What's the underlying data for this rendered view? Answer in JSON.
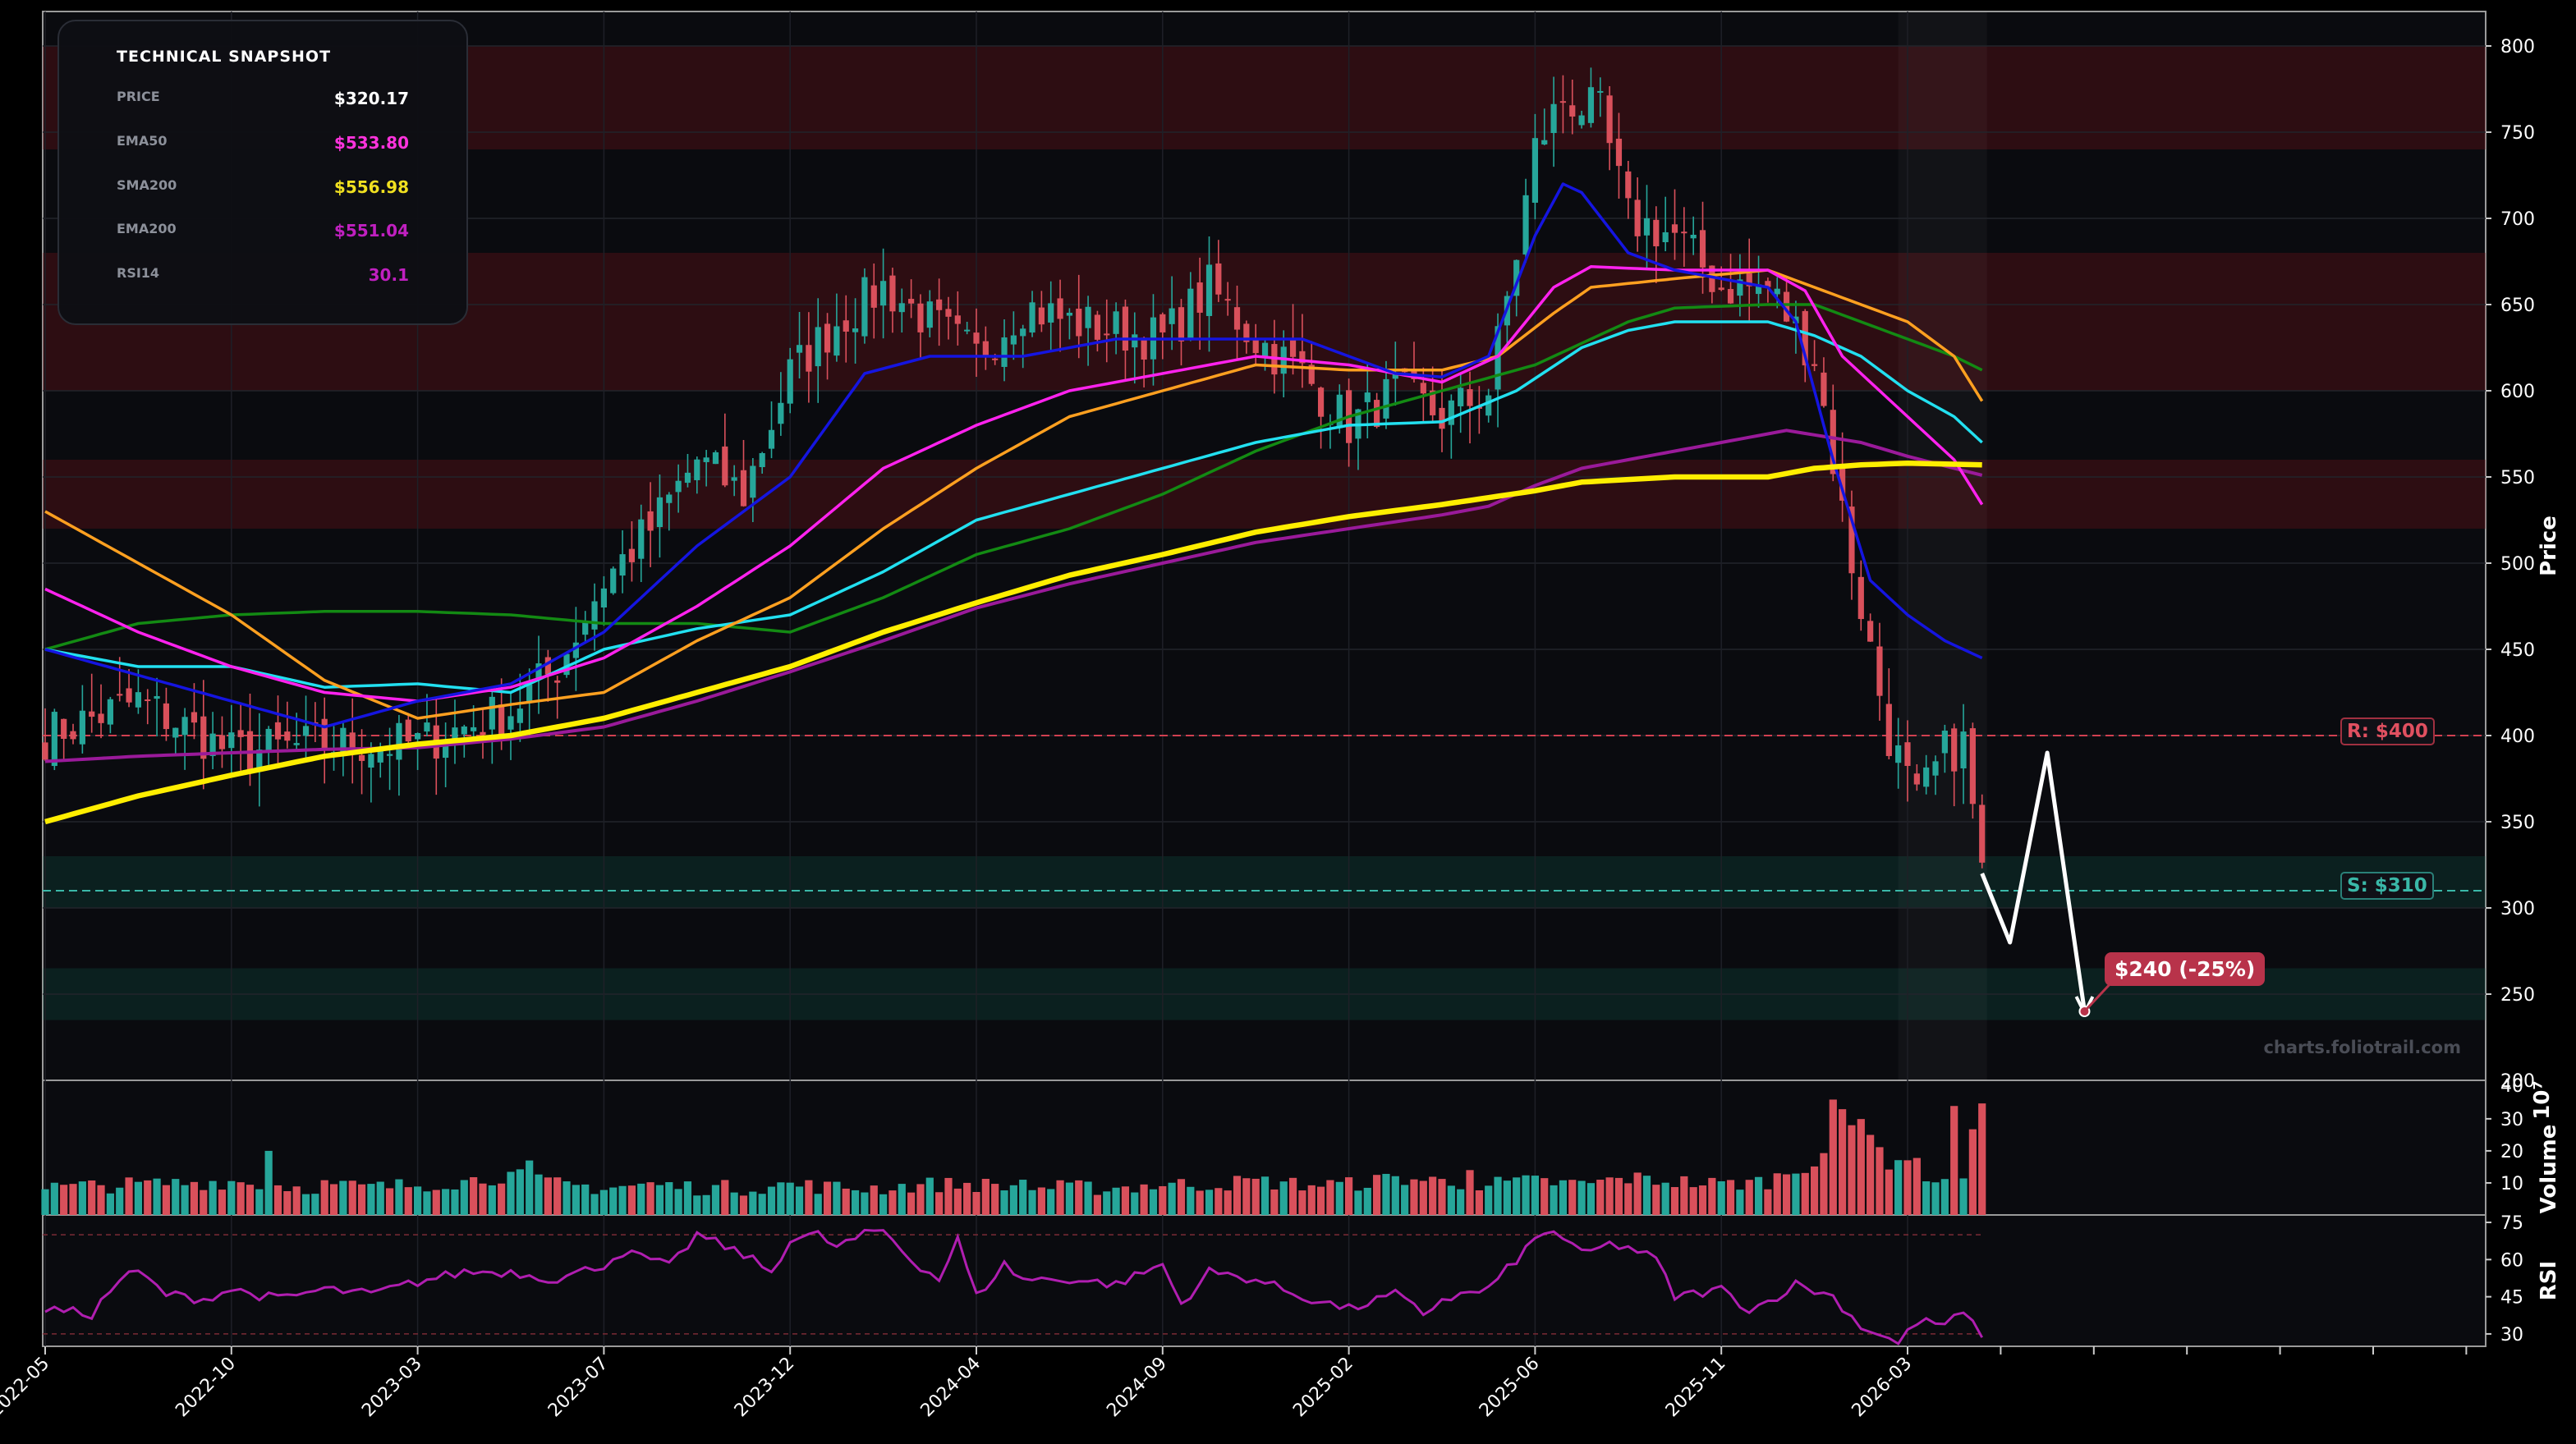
{
  "snapshot": {
    "title": "TECHNICAL SNAPSHOT",
    "rows": [
      {
        "label": "PRICE",
        "value": "$320.17",
        "color": "#ffffff"
      },
      {
        "label": "EMA50",
        "value": "$533.80",
        "color": "#ff33dd"
      },
      {
        "label": "SMA200",
        "value": "$556.98",
        "color": "#f0e020"
      },
      {
        "label": "EMA200",
        "value": "$551.04",
        "color": "#c020c0"
      },
      {
        "label": "RSI14",
        "value": "30.1",
        "color": "#c020c0"
      }
    ]
  },
  "watermark": "charts.foliotrail.com",
  "levels": {
    "resistance_label": "R: $400",
    "support_label": "S: $310",
    "target_label": "$240 (-25%)"
  },
  "chart_data": {
    "type": "candlestick",
    "price_axis": {
      "title": "Price",
      "ticks": [
        250,
        300,
        350,
        400,
        450,
        500,
        550,
        600,
        650,
        700,
        750,
        800
      ],
      "range": [
        200,
        820
      ],
      "extra_tick": "200"
    },
    "volume_axis": {
      "title": "Volume",
      "multiplier": "10⁷",
      "ticks": [
        10,
        20,
        30
      ],
      "top_label": "40"
    },
    "rsi_axis": {
      "title": "RSI",
      "ticks": [
        30,
        45,
        60,
        75
      ],
      "range": [
        25,
        78
      ]
    },
    "x_ticks": [
      "2022-05",
      "2022-10",
      "2023-03",
      "2023-07",
      "2023-12",
      "2024-04",
      "2024-09",
      "2025-02",
      "2025-06",
      "2025-11",
      "2026-03"
    ],
    "x_tick_index": [
      0,
      20,
      40,
      60,
      80,
      100,
      120,
      140,
      160,
      180,
      200
    ],
    "last_index": 208,
    "resistance": 400,
    "support": 310,
    "resistance_zones": [
      [
        740,
        800
      ],
      [
        600,
        680
      ],
      [
        520,
        560
      ]
    ],
    "support_zones": [
      [
        300,
        330
      ],
      [
        235,
        265
      ]
    ],
    "projection": [
      [
        208,
        320
      ],
      [
        211,
        280
      ],
      [
        215,
        390
      ],
      [
        219,
        240
      ]
    ],
    "target": 240,
    "anchors": {
      "close": [
        [
          0,
          400
        ],
        [
          10,
          420
        ],
        [
          20,
          390
        ],
        [
          30,
          395
        ],
        [
          40,
          395
        ],
        [
          50,
          415
        ],
        [
          55,
          440
        ],
        [
          60,
          490
        ],
        [
          65,
          520
        ],
        [
          70,
          560
        ],
        [
          75,
          540
        ],
        [
          80,
          610
        ],
        [
          85,
          640
        ],
        [
          90,
          660
        ],
        [
          95,
          640
        ],
        [
          100,
          620
        ],
        [
          105,
          650
        ],
        [
          110,
          640
        ],
        [
          120,
          630
        ],
        [
          125,
          660
        ],
        [
          130,
          630
        ],
        [
          135,
          610
        ],
        [
          140,
          580
        ],
        [
          145,
          600
        ],
        [
          150,
          585
        ],
        [
          155,
          600
        ],
        [
          158,
          680
        ],
        [
          160,
          740
        ],
        [
          163,
          770
        ],
        [
          167,
          760
        ],
        [
          170,
          700
        ],
        [
          175,
          690
        ],
        [
          180,
          660
        ],
        [
          185,
          660
        ],
        [
          190,
          620
        ],
        [
          194,
          500
        ],
        [
          198,
          400
        ],
        [
          201,
          360
        ],
        [
          204,
          390
        ],
        [
          206,
          395
        ],
        [
          208,
          320
        ]
      ],
      "ema20": [
        [
          0,
          450
        ],
        [
          10,
          435
        ],
        [
          20,
          420
        ],
        [
          30,
          405
        ],
        [
          40,
          420
        ],
        [
          50,
          430
        ],
        [
          60,
          460
        ],
        [
          70,
          510
        ],
        [
          80,
          550
        ],
        [
          88,
          610
        ],
        [
          95,
          620
        ],
        [
          105,
          620
        ],
        [
          115,
          630
        ],
        [
          125,
          630
        ],
        [
          135,
          630
        ],
        [
          145,
          610
        ],
        [
          150,
          608
        ],
        [
          155,
          620
        ],
        [
          160,
          690
        ],
        [
          163,
          720
        ],
        [
          165,
          715
        ],
        [
          170,
          680
        ],
        [
          175,
          670
        ],
        [
          180,
          665
        ],
        [
          185,
          660
        ],
        [
          188,
          640
        ],
        [
          192,
          560
        ],
        [
          196,
          490
        ],
        [
          200,
          470
        ],
        [
          204,
          455
        ],
        [
          208,
          445
        ]
      ],
      "ema50": [
        [
          0,
          485
        ],
        [
          10,
          460
        ],
        [
          20,
          440
        ],
        [
          30,
          425
        ],
        [
          40,
          420
        ],
        [
          50,
          428
        ],
        [
          60,
          445
        ],
        [
          70,
          475
        ],
        [
          80,
          510
        ],
        [
          90,
          555
        ],
        [
          100,
          580
        ],
        [
          110,
          600
        ],
        [
          120,
          610
        ],
        [
          130,
          620
        ],
        [
          140,
          615
        ],
        [
          150,
          605
        ],
        [
          156,
          620
        ],
        [
          162,
          660
        ],
        [
          166,
          672
        ],
        [
          175,
          670
        ],
        [
          185,
          670
        ],
        [
          189,
          658
        ],
        [
          193,
          620
        ],
        [
          200,
          585
        ],
        [
          205,
          560
        ],
        [
          208,
          534
        ]
      ],
      "ema100": [
        [
          0,
          530
        ],
        [
          10,
          500
        ],
        [
          20,
          470
        ],
        [
          30,
          432
        ],
        [
          40,
          410
        ],
        [
          50,
          418
        ],
        [
          60,
          425
        ],
        [
          70,
          455
        ],
        [
          80,
          480
        ],
        [
          90,
          520
        ],
        [
          100,
          555
        ],
        [
          110,
          585
        ],
        [
          120,
          600
        ],
        [
          130,
          615
        ],
        [
          140,
          612
        ],
        [
          150,
          612
        ],
        [
          156,
          620
        ],
        [
          162,
          645
        ],
        [
          166,
          660
        ],
        [
          175,
          665
        ],
        [
          185,
          670
        ],
        [
          190,
          660
        ],
        [
          195,
          650
        ],
        [
          200,
          640
        ],
        [
          205,
          620
        ],
        [
          208,
          594
        ]
      ],
      "ema150": [
        [
          0,
          450
        ],
        [
          10,
          440
        ],
        [
          20,
          440
        ],
        [
          30,
          428
        ],
        [
          40,
          430
        ],
        [
          50,
          425
        ],
        [
          60,
          450
        ],
        [
          70,
          462
        ],
        [
          80,
          470
        ],
        [
          90,
          495
        ],
        [
          100,
          525
        ],
        [
          110,
          540
        ],
        [
          120,
          555
        ],
        [
          130,
          570
        ],
        [
          140,
          580
        ],
        [
          150,
          582
        ],
        [
          158,
          600
        ],
        [
          165,
          625
        ],
        [
          170,
          635
        ],
        [
          175,
          640
        ],
        [
          185,
          640
        ],
        [
          190,
          632
        ],
        [
          195,
          620
        ],
        [
          200,
          600
        ],
        [
          205,
          585
        ],
        [
          208,
          570
        ]
      ],
      "sma100": [
        [
          0,
          450
        ],
        [
          10,
          465
        ],
        [
          20,
          470
        ],
        [
          30,
          472
        ],
        [
          40,
          472
        ],
        [
          50,
          470
        ],
        [
          60,
          465
        ],
        [
          70,
          465
        ],
        [
          80,
          460
        ],
        [
          90,
          480
        ],
        [
          100,
          505
        ],
        [
          110,
          520
        ],
        [
          120,
          540
        ],
        [
          130,
          565
        ],
        [
          140,
          585
        ],
        [
          150,
          600
        ],
        [
          160,
          615
        ],
        [
          170,
          640
        ],
        [
          175,
          648
        ],
        [
          185,
          650
        ],
        [
          190,
          650
        ],
        [
          195,
          640
        ],
        [
          200,
          630
        ],
        [
          205,
          620
        ],
        [
          208,
          612
        ]
      ],
      "sma200": [
        [
          0,
          350
        ],
        [
          10,
          365
        ],
        [
          20,
          377
        ],
        [
          30,
          388
        ],
        [
          40,
          395
        ],
        [
          50,
          400
        ],
        [
          60,
          410
        ],
        [
          70,
          425
        ],
        [
          80,
          440
        ],
        [
          90,
          460
        ],
        [
          100,
          477
        ],
        [
          110,
          493
        ],
        [
          120,
          505
        ],
        [
          130,
          518
        ],
        [
          140,
          527
        ],
        [
          150,
          534
        ],
        [
          160,
          542
        ],
        [
          165,
          547
        ],
        [
          175,
          550
        ],
        [
          185,
          550
        ],
        [
          190,
          555
        ],
        [
          195,
          557
        ],
        [
          200,
          558
        ],
        [
          208,
          557
        ]
      ],
      "ema200": [
        [
          0,
          385
        ],
        [
          10,
          388
        ],
        [
          20,
          390
        ],
        [
          30,
          392
        ],
        [
          40,
          393
        ],
        [
          50,
          398
        ],
        [
          60,
          405
        ],
        [
          70,
          420
        ],
        [
          80,
          437
        ],
        [
          90,
          455
        ],
        [
          100,
          474
        ],
        [
          110,
          488
        ],
        [
          120,
          500
        ],
        [
          130,
          512
        ],
        [
          140,
          520
        ],
        [
          150,
          528
        ],
        [
          155,
          533
        ],
        [
          160,
          545
        ],
        [
          165,
          555
        ],
        [
          170,
          560
        ],
        [
          180,
          570
        ],
        [
          187,
          577
        ],
        [
          195,
          570
        ],
        [
          200,
          562
        ],
        [
          205,
          555
        ],
        [
          208,
          551
        ]
      ],
      "rsi": [
        [
          0,
          40
        ],
        [
          5,
          38
        ],
        [
          8,
          52
        ],
        [
          10,
          55
        ],
        [
          13,
          46
        ],
        [
          17,
          44
        ],
        [
          20,
          48
        ],
        [
          25,
          44
        ],
        [
          30,
          48
        ],
        [
          35,
          46
        ],
        [
          40,
          51
        ],
        [
          45,
          55
        ],
        [
          50,
          55
        ],
        [
          55,
          52
        ],
        [
          60,
          58
        ],
        [
          62,
          63
        ],
        [
          65,
          60
        ],
        [
          67,
          57
        ],
        [
          70,
          70
        ],
        [
          75,
          62
        ],
        [
          78,
          55
        ],
        [
          80,
          68
        ],
        [
          83,
          70
        ],
        [
          85,
          65
        ],
        [
          88,
          70
        ],
        [
          90,
          72
        ],
        [
          93,
          60
        ],
        [
          96,
          52
        ],
        [
          98,
          68
        ],
        [
          100,
          45
        ],
        [
          103,
          58
        ],
        [
          105,
          52
        ],
        [
          110,
          52
        ],
        [
          115,
          50
        ],
        [
          120,
          58
        ],
        [
          122,
          42
        ],
        [
          125,
          55
        ],
        [
          130,
          52
        ],
        [
          135,
          45
        ],
        [
          140,
          40
        ],
        [
          145,
          46
        ],
        [
          148,
          38
        ],
        [
          150,
          44
        ],
        [
          155,
          48
        ],
        [
          160,
          68
        ],
        [
          162,
          72
        ],
        [
          165,
          62
        ],
        [
          168,
          66
        ],
        [
          170,
          65
        ],
        [
          173,
          60
        ],
        [
          175,
          45
        ],
        [
          180,
          48
        ],
        [
          183,
          40
        ],
        [
          185,
          43
        ],
        [
          188,
          50
        ],
        [
          192,
          45
        ],
        [
          195,
          33
        ],
        [
          197,
          30
        ],
        [
          199,
          26
        ],
        [
          201,
          35
        ],
        [
          204,
          34
        ],
        [
          206,
          38
        ],
        [
          208,
          30
        ]
      ],
      "volume": [
        [
          0,
          8
        ],
        [
          10,
          9
        ],
        [
          20,
          10
        ],
        [
          28,
          8
        ],
        [
          30,
          9
        ],
        [
          35,
          8
        ],
        [
          40,
          9
        ],
        [
          45,
          10
        ],
        [
          50,
          12
        ],
        [
          55,
          9
        ],
        [
          60,
          8
        ],
        [
          65,
          9
        ],
        [
          70,
          8
        ],
        [
          75,
          8
        ],
        [
          80,
          9
        ],
        [
          85,
          8
        ],
        [
          90,
          8
        ],
        [
          95,
          9
        ],
        [
          100,
          9
        ],
        [
          105,
          8
        ],
        [
          110,
          8
        ],
        [
          115,
          8
        ],
        [
          120,
          9
        ],
        [
          125,
          9
        ],
        [
          130,
          10
        ],
        [
          135,
          9
        ],
        [
          140,
          9
        ],
        [
          145,
          11
        ],
        [
          150,
          10
        ],
        [
          155,
          9
        ],
        [
          160,
          10
        ],
        [
          165,
          9
        ],
        [
          170,
          11
        ],
        [
          175,
          10
        ],
        [
          180,
          9
        ],
        [
          185,
          10
        ],
        [
          188,
          14
        ],
        [
          190,
          16
        ],
        [
          192,
          22
        ],
        [
          194,
          30
        ],
        [
          196,
          24
        ],
        [
          198,
          16
        ],
        [
          200,
          18
        ],
        [
          202,
          12
        ],
        [
          204,
          10
        ],
        [
          206,
          12
        ],
        [
          208,
          36
        ]
      ]
    },
    "volume_spikes": [
      [
        24,
        20
      ],
      [
        52,
        17
      ],
      [
        105,
        11
      ],
      [
        153,
        14
      ],
      [
        192,
        36
      ],
      [
        193,
        33
      ],
      [
        194,
        28
      ],
      [
        205,
        34
      ]
    ]
  }
}
